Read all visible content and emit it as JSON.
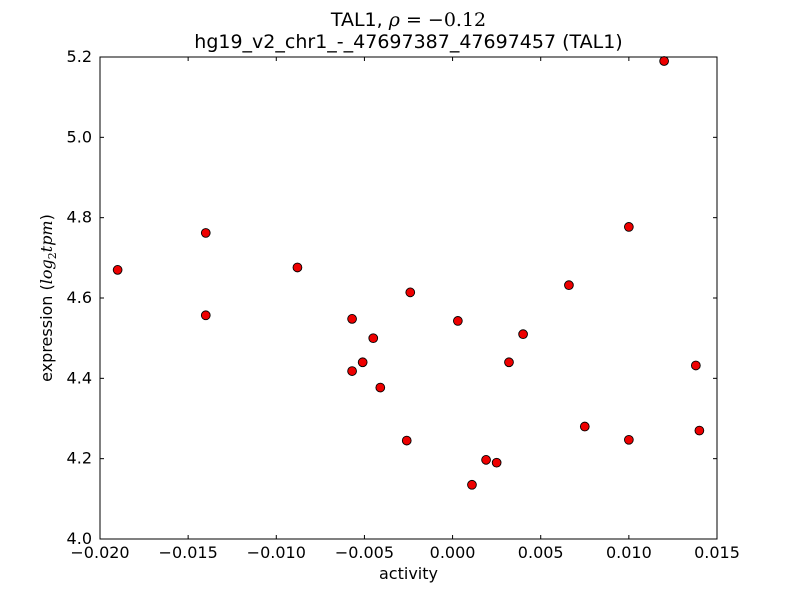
{
  "figure": {
    "background": "#ffffff"
  },
  "chart_data": {
    "type": "scatter",
    "title_line1": {
      "plain": "TAL1, ",
      "math_symbol": "ρ",
      "math_rest": " = −0.12"
    },
    "title_line2": "hg19_v2_chr1_-_47697387_47697457 (TAL1)",
    "xlabel": "activity",
    "ylabel": {
      "plain_open": "expression (",
      "math_fn": "log",
      "math_sub": "2",
      "math_var": "tpm",
      "plain_close": ")"
    },
    "xlim": [
      -0.02,
      0.015
    ],
    "ylim": [
      4.0,
      5.2
    ],
    "grid": false,
    "legend": null,
    "xticks": {
      "values": [
        -0.02,
        -0.015,
        -0.01,
        -0.005,
        0.0,
        0.005,
        0.01,
        0.015
      ],
      "labels": [
        "−0.020",
        "−0.015",
        "−0.010",
        "−0.005",
        "0.000",
        "0.005",
        "0.010",
        "0.015"
      ]
    },
    "yticks": {
      "values": [
        4.0,
        4.2,
        4.4,
        4.6,
        4.8,
        5.0,
        5.2
      ],
      "labels": [
        "4.0",
        "4.2",
        "4.4",
        "4.6",
        "4.8",
        "5.0",
        "5.2"
      ]
    },
    "marker": {
      "shape": "circle",
      "fill": "#ee0000",
      "edge": "#000000"
    },
    "points": [
      [
        -0.019,
        4.67
      ],
      [
        -0.014,
        4.762
      ],
      [
        -0.014,
        4.557
      ],
      [
        -0.0088,
        4.676
      ],
      [
        -0.0057,
        4.548
      ],
      [
        -0.0057,
        4.418
      ],
      [
        -0.0051,
        4.44
      ],
      [
        -0.0045,
        4.5
      ],
      [
        -0.0041,
        4.377
      ],
      [
        -0.0024,
        4.614
      ],
      [
        -0.0026,
        4.245
      ],
      [
        0.0003,
        4.543
      ],
      [
        0.0011,
        4.135
      ],
      [
        0.0019,
        4.197
      ],
      [
        0.0025,
        4.19
      ],
      [
        0.0032,
        4.44
      ],
      [
        0.004,
        4.51
      ],
      [
        0.0066,
        4.632
      ],
      [
        0.0075,
        4.28
      ],
      [
        0.01,
        4.777
      ],
      [
        0.01,
        4.247
      ],
      [
        0.012,
        5.19
      ],
      [
        0.0138,
        4.432
      ],
      [
        0.014,
        4.27
      ]
    ]
  }
}
